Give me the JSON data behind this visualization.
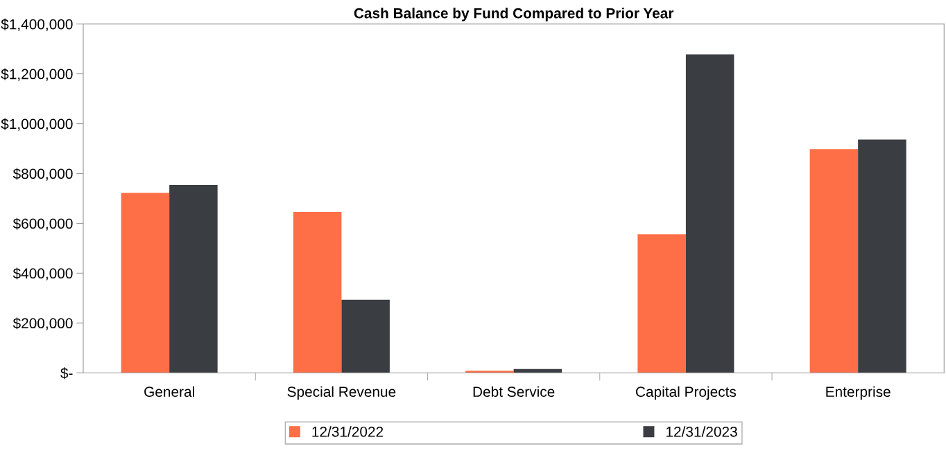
{
  "chart_data": {
    "type": "bar",
    "title": "Cash Balance by Fund Compared to Prior Year",
    "categories": [
      "General",
      "Special Revenue",
      "Debt Service",
      "Capital Projects",
      "Enterprise"
    ],
    "series": [
      {
        "name": "12/31/2022",
        "color": "#ff6f47",
        "values": [
          722000,
          646000,
          8000,
          556000,
          898000
        ]
      },
      {
        "name": "12/31/2023",
        "color": "#3a3d41",
        "values": [
          754000,
          293000,
          15000,
          1278000,
          936000
        ]
      }
    ],
    "ylim": [
      0,
      1400000
    ],
    "yticks": [
      {
        "value": 0,
        "label": "$-"
      },
      {
        "value": 200000,
        "label": "$200,000"
      },
      {
        "value": 400000,
        "label": "$400,000"
      },
      {
        "value": 600000,
        "label": "$600,000"
      },
      {
        "value": 800000,
        "label": "$800,000"
      },
      {
        "value": 1000000,
        "label": "$1,000,000"
      },
      {
        "value": 1200000,
        "label": "$1,200,000"
      },
      {
        "value": 1400000,
        "label": "$1,400,000"
      }
    ],
    "grid": false,
    "legend": "bottom"
  }
}
